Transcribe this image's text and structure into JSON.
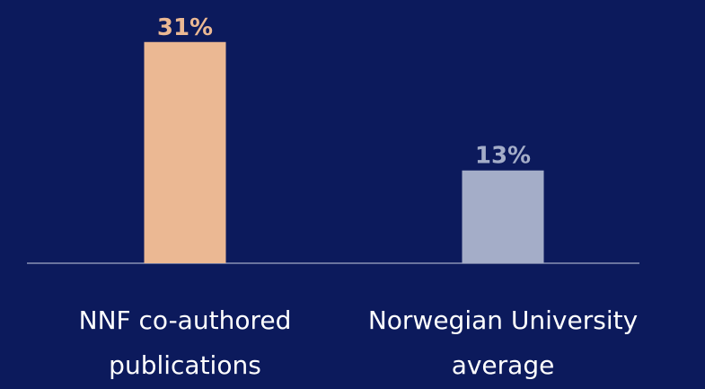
{
  "chart_data": {
    "type": "bar",
    "categories": [
      "NNF co-authored publications",
      "Norwegian University average"
    ],
    "values": [
      31,
      13
    ],
    "value_labels": [
      "31%",
      "13%"
    ],
    "colors": [
      "#ebb893",
      "#a4adc8"
    ],
    "ylim": [
      0,
      35
    ]
  }
}
